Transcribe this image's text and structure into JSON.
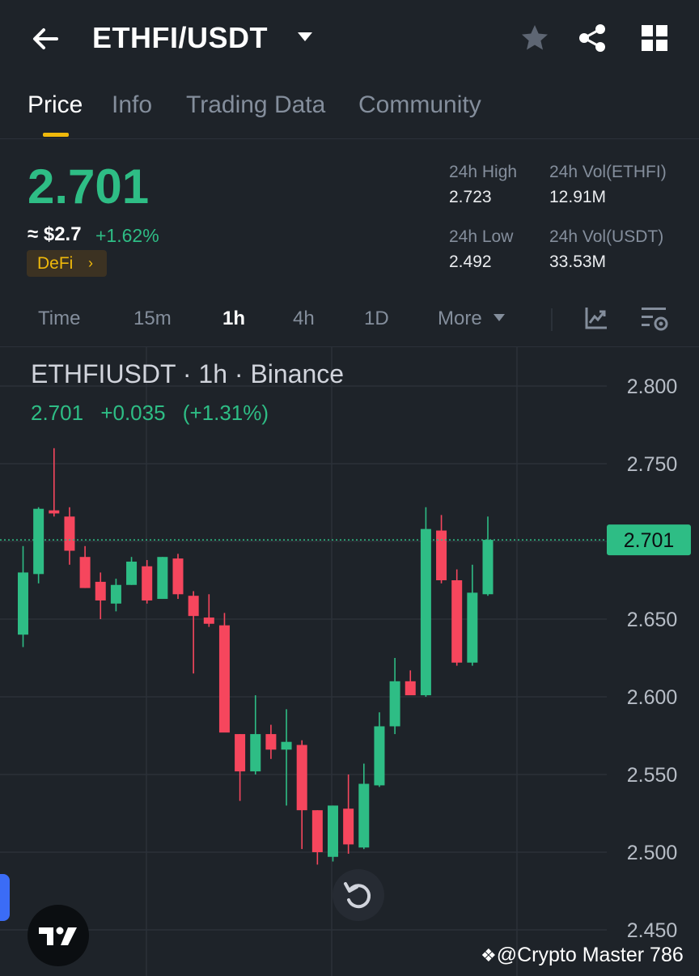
{
  "header": {
    "pair": "ETHFI/USDT",
    "icons": [
      "back-arrow-icon",
      "chevron-down-icon",
      "star-icon",
      "share-icon",
      "grid-icon"
    ]
  },
  "tabs": [
    {
      "label": "Price",
      "active": true
    },
    {
      "label": "Info",
      "active": false
    },
    {
      "label": "Trading Data",
      "active": false
    },
    {
      "label": "Community",
      "active": false
    }
  ],
  "ticker": {
    "last_price": "2.701",
    "usd_price": "≈ $2.7",
    "change_pct": "+1.62%",
    "tag": "DeFi",
    "stats": {
      "high_label": "24h High",
      "high": "2.723",
      "vol_base_label": "24h Vol(ETHFI)",
      "vol_base": "12.91M",
      "low_label": "24h Low",
      "low": "2.492",
      "vol_quote_label": "24h Vol(USDT)",
      "vol_quote": "33.53M"
    }
  },
  "intervals": {
    "items": [
      "Time",
      "15m",
      "1h",
      "4h",
      "1D",
      "More"
    ],
    "selected": "1h"
  },
  "chart_header": {
    "title": "ETHFIUSDT · 1h · Binance",
    "close": "2.701",
    "change": "+0.035",
    "change_pct": "(+1.31%)"
  },
  "colors": {
    "up": "#2ebd85",
    "down": "#f6465d",
    "accent": "#f0b90b",
    "background": "#1e2329"
  },
  "chart_data": {
    "type": "candlestick",
    "interval": "1h",
    "y_ticks": [
      "2.800",
      "2.750",
      "2.700",
      "2.650",
      "2.600",
      "2.550",
      "2.500",
      "2.450"
    ],
    "ylim": [
      2.44,
      2.815
    ],
    "last_price_label": "2.701",
    "grid": true,
    "candles": [
      {
        "o": 2.64,
        "h": 2.697,
        "l": 2.632,
        "c": 2.68
      },
      {
        "o": 2.679,
        "h": 2.722,
        "l": 2.673,
        "c": 2.721
      },
      {
        "o": 2.72,
        "h": 2.76,
        "l": 2.716,
        "c": 2.718
      },
      {
        "o": 2.716,
        "h": 2.722,
        "l": 2.685,
        "c": 2.694
      },
      {
        "o": 2.69,
        "h": 2.697,
        "l": 2.67,
        "c": 2.67
      },
      {
        "o": 2.674,
        "h": 2.68,
        "l": 2.65,
        "c": 2.662
      },
      {
        "o": 2.66,
        "h": 2.676,
        "l": 2.655,
        "c": 2.672
      },
      {
        "o": 2.672,
        "h": 2.69,
        "l": 2.672,
        "c": 2.687
      },
      {
        "o": 2.684,
        "h": 2.688,
        "l": 2.66,
        "c": 2.662
      },
      {
        "o": 2.663,
        "h": 2.69,
        "l": 2.663,
        "c": 2.69
      },
      {
        "o": 2.689,
        "h": 2.692,
        "l": 2.663,
        "c": 2.666
      },
      {
        "o": 2.665,
        "h": 2.668,
        "l": 2.615,
        "c": 2.652
      },
      {
        "o": 2.651,
        "h": 2.666,
        "l": 2.645,
        "c": 2.647
      },
      {
        "o": 2.646,
        "h": 2.654,
        "l": 2.578,
        "c": 2.577
      },
      {
        "o": 2.576,
        "h": 2.576,
        "l": 2.533,
        "c": 2.552
      },
      {
        "o": 2.552,
        "h": 2.601,
        "l": 2.55,
        "c": 2.576
      },
      {
        "o": 2.576,
        "h": 2.582,
        "l": 2.56,
        "c": 2.566
      },
      {
        "o": 2.566,
        "h": 2.592,
        "l": 2.53,
        "c": 2.571
      },
      {
        "o": 2.569,
        "h": 2.572,
        "l": 2.502,
        "c": 2.527
      },
      {
        "o": 2.527,
        "h": 2.527,
        "l": 2.492,
        "c": 2.5
      },
      {
        "o": 2.497,
        "h": 2.53,
        "l": 2.494,
        "c": 2.53
      },
      {
        "o": 2.528,
        "h": 2.55,
        "l": 2.499,
        "c": 2.505
      },
      {
        "o": 2.503,
        "h": 2.557,
        "l": 2.502,
        "c": 2.544
      },
      {
        "o": 2.543,
        "h": 2.59,
        "l": 2.542,
        "c": 2.581
      },
      {
        "o": 2.581,
        "h": 2.625,
        "l": 2.576,
        "c": 2.61
      },
      {
        "o": 2.61,
        "h": 2.617,
        "l": 2.603,
        "c": 2.601
      },
      {
        "o": 2.601,
        "h": 2.722,
        "l": 2.6,
        "c": 2.708
      },
      {
        "o": 2.707,
        "h": 2.717,
        "l": 2.673,
        "c": 2.675
      },
      {
        "o": 2.675,
        "h": 2.682,
        "l": 2.62,
        "c": 2.622
      },
      {
        "o": 2.622,
        "h": 2.685,
        "l": 2.62,
        "c": 2.667
      },
      {
        "o": 2.666,
        "h": 2.716,
        "l": 2.665,
        "c": 2.701
      }
    ]
  },
  "footer": {
    "watermark": "@Crypto Master 786"
  }
}
